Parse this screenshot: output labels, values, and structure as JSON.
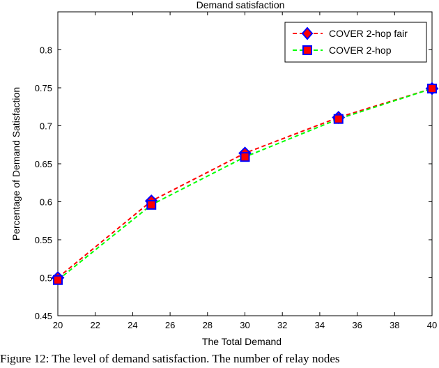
{
  "chart_data": {
    "type": "line",
    "title": "Demand satisfaction",
    "xlabel": "The Total Demand",
    "ylabel": "Percentage of Demand Satisfaction",
    "xlim": [
      20,
      40
    ],
    "ylim": [
      0.45,
      0.85
    ],
    "x_ticks": [
      20,
      22,
      24,
      26,
      28,
      30,
      32,
      34,
      36,
      38,
      40
    ],
    "y_ticks": [
      0.45,
      0.5,
      0.55,
      0.6,
      0.65,
      0.7,
      0.75,
      0.8
    ],
    "x_tick_labels": [
      "20",
      "22",
      "24",
      "26",
      "28",
      "30",
      "32",
      "34",
      "36",
      "38",
      "40"
    ],
    "y_tick_labels": [
      "0.45",
      "0.5",
      "0.55",
      "0.6",
      "0.65",
      "0.7",
      "0.75",
      "0.8"
    ],
    "x": [
      20,
      25,
      30,
      35,
      40
    ],
    "grid": false,
    "legend_position": "top-right",
    "series": [
      {
        "name": "COVER 2-hop fair",
        "values": [
          0.5,
          0.601,
          0.664,
          0.711,
          0.749
        ],
        "line_color": "#ff0000",
        "line_style": "dashed",
        "marker": "diamond",
        "marker_fill": "#ff0000",
        "marker_edge": "#0000ff"
      },
      {
        "name": "COVER 2-hop",
        "values": [
          0.497,
          0.596,
          0.659,
          0.709,
          0.749
        ],
        "line_color": "#00ff00",
        "line_style": "dashed",
        "marker": "square",
        "marker_fill": "#ff0000",
        "marker_edge": "#0000ff"
      }
    ]
  },
  "caption": "Figure 12: The level of demand satisfaction. The number of relay nodes"
}
